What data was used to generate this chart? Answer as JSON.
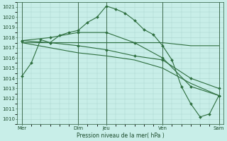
{
  "title": "",
  "xlabel": "Pression niveau de la mer( hPa )",
  "background_color": "#c8eee8",
  "grid_color": "#a8d4cc",
  "line_color": "#2d6e3e",
  "ylim": [
    1009.5,
    1021.5
  ],
  "yticks": [
    1010,
    1011,
    1012,
    1013,
    1014,
    1015,
    1016,
    1017,
    1018,
    1019,
    1020,
    1021
  ],
  "figsize": [
    3.2,
    2.0
  ],
  "dpi": 100,
  "lines": [
    {
      "x": [
        0,
        1,
        2,
        3,
        4,
        5,
        6,
        7,
        8,
        9,
        10,
        11,
        12,
        13,
        14,
        15,
        16,
        17,
        18,
        19,
        20,
        21
      ],
      "y": [
        1014.2,
        1015.5,
        1017.8,
        1017.5,
        1018.2,
        1018.5,
        1018.7,
        1019.5,
        1020.0,
        1021.1,
        1020.8,
        1020.4,
        1019.7,
        1018.8,
        1018.3,
        1017.2,
        1015.8,
        1013.2,
        1011.5,
        1010.2,
        1010.5,
        1012.3
      ],
      "marker": "D",
      "markersize": 2.0,
      "linewidth": 0.8
    },
    {
      "x": [
        0,
        3,
        6,
        9,
        12,
        15,
        18,
        21
      ],
      "y": [
        1017.5,
        1017.5,
        1017.5,
        1017.5,
        1017.5,
        1017.5,
        1017.2,
        1017.2
      ],
      "marker": null,
      "markersize": 0,
      "linewidth": 0.8
    },
    {
      "x": [
        0,
        3,
        6,
        9,
        12,
        15,
        18,
        21
      ],
      "y": [
        1017.7,
        1018.0,
        1018.5,
        1018.5,
        1017.5,
        1016.0,
        1013.2,
        1012.3
      ],
      "marker": "D",
      "markersize": 2.0,
      "linewidth": 0.8
    },
    {
      "x": [
        0,
        3,
        6,
        9,
        12,
        15,
        18,
        21
      ],
      "y": [
        1017.7,
        1017.5,
        1017.2,
        1016.8,
        1016.2,
        1015.8,
        1014.0,
        1013.0
      ],
      "marker": "D",
      "markersize": 2.0,
      "linewidth": 0.8
    },
    {
      "x": [
        0,
        3,
        6,
        9,
        12,
        15,
        18,
        21
      ],
      "y": [
        1017.5,
        1017.0,
        1016.5,
        1016.2,
        1015.8,
        1015.0,
        1013.5,
        1012.3
      ],
      "marker": null,
      "markersize": 0,
      "linewidth": 0.8
    }
  ],
  "vlines_x": [
    0,
    6,
    9,
    15,
    21
  ],
  "vline_color": "#2d5a3a",
  "xtick_positions": [
    0,
    6,
    9,
    15,
    21
  ],
  "xtick_labels": [
    "Mer",
    "Dim",
    "Jeu",
    "Ven",
    "Sam"
  ]
}
